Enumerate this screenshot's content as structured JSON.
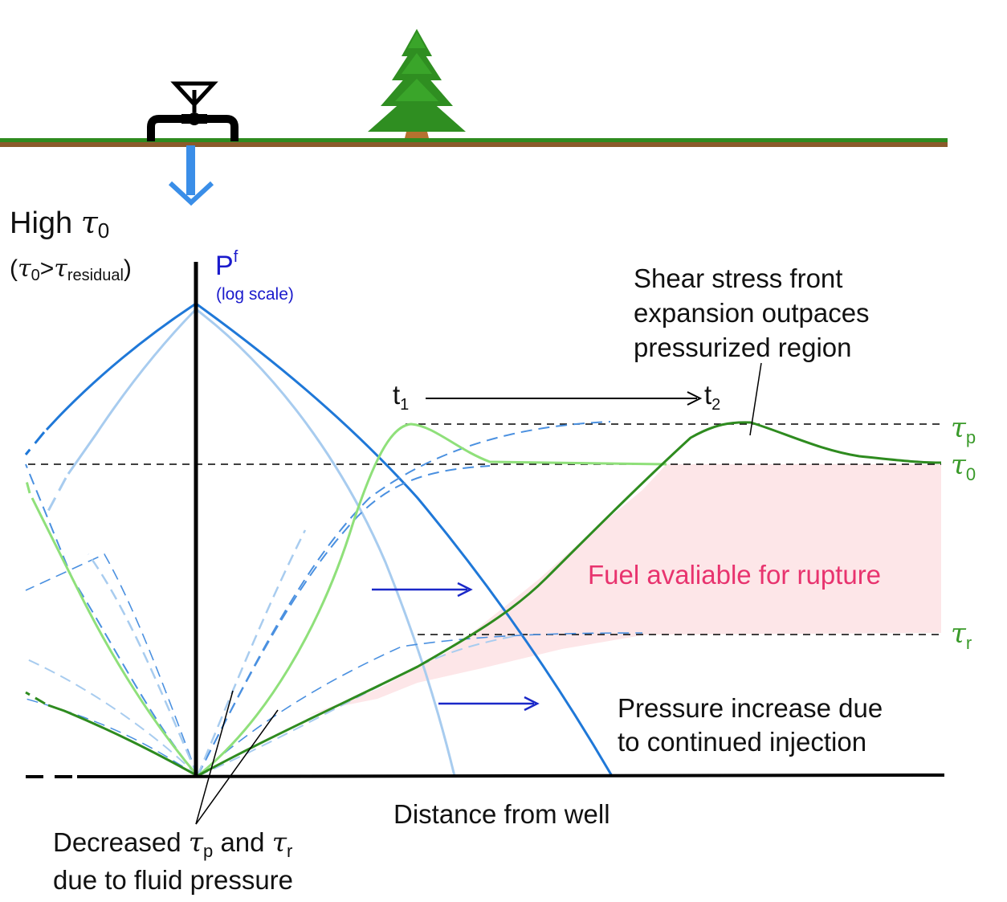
{
  "header": {
    "title_prefix": "High ",
    "title_symbol": "τ",
    "title_subscript": "0",
    "condition_open": "(",
    "condition_tau0_symbol": "τ",
    "condition_tau0_sub": "0",
    "condition_gt": ">",
    "condition_tau_symbol": "τ",
    "condition_sub": "residual",
    "condition_close": ")"
  },
  "axis": {
    "y_label": "P",
    "y_label_superscript": "f",
    "y_scale_note": "(log scale)",
    "x_label": "Distance from well"
  },
  "time_markers": {
    "t1": "t",
    "t1_sub": "1",
    "t2": "t",
    "t2_sub": "2"
  },
  "stress_levels": {
    "tau_p_symbol": "τ",
    "tau_p_sub": "p",
    "tau_0_symbol": "τ",
    "tau_0_sub": "0",
    "tau_r_symbol": "τ",
    "tau_r_sub": "r"
  },
  "annotations": {
    "shear_front_line1": "Shear stress front",
    "shear_front_line2": "expansion outpaces",
    "shear_front_line3": "pressurized region",
    "fuel": "Fuel avaliable for rupture",
    "pressure_line1": "Pressure increase due",
    "pressure_line2": "to continued injection",
    "decreased_prefix": "Decreased ",
    "decreased_tau1": "τ",
    "decreased_tau1_sub": "p",
    "decreased_and": " and ",
    "decreased_tau2": "τ",
    "decreased_tau2_sub": "r",
    "decreased_line2": "due to fluid pressure"
  },
  "colors": {
    "pressure_t1": "#a8ccef",
    "pressure_t2": "#1f78d8",
    "stress_t1": "#8fe07a",
    "stress_t2": "#2e8b1f",
    "fuel_fill": "#fde6e8",
    "fuel_text": "#e8336e",
    "axis_label": "#1a1acc",
    "arrow": "#1a28c8",
    "injection_arrow": "#3a8ee8",
    "ground_grass": "#2e8b1f",
    "ground_soil": "#8b5a2b"
  },
  "icons": {
    "well": "well-valve-icon",
    "tree": "tree-icon",
    "injection": "injection-arrow-icon"
  }
}
